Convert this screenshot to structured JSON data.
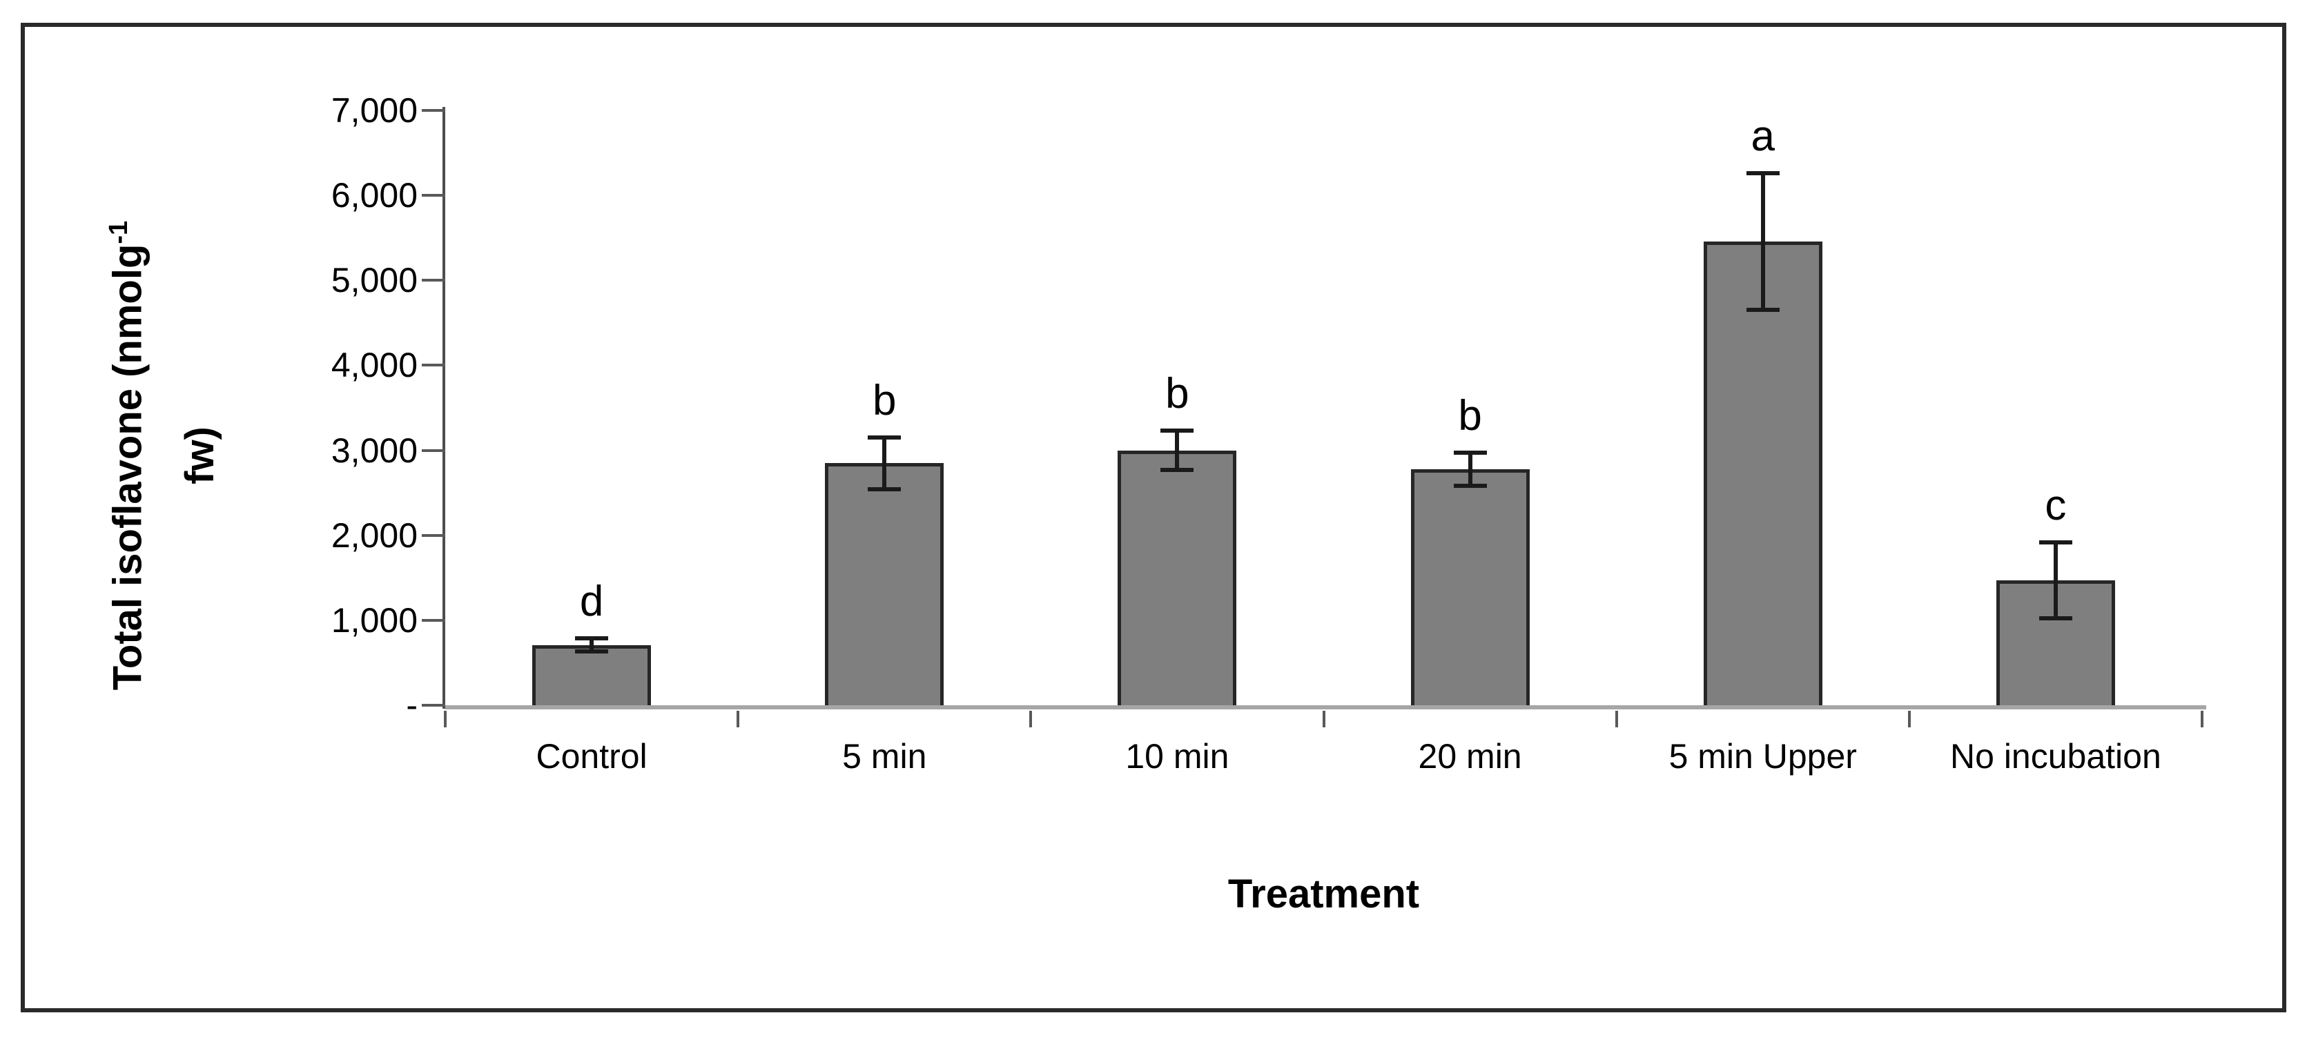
{
  "figure": {
    "xlabel": "Treatment",
    "ylabel_line1": "Total isoflavone (nmolg",
    "ylabel_sup": "-1",
    "ylabel_line2": "fw)"
  },
  "chart_data": {
    "type": "bar",
    "title": "",
    "xlabel": "Treatment",
    "ylabel": "Total isoflavone (nmolg-1 fw)",
    "categories": [
      "Control",
      "5 min",
      "10 min",
      "20 min",
      "5 min Upper",
      "No incubation"
    ],
    "values": [
      710,
      2850,
      3000,
      2780,
      5460,
      1470
    ],
    "errors": [
      55,
      280,
      210,
      170,
      780,
      425
    ],
    "sig_letters": [
      "d",
      "b",
      "b",
      "b",
      "a",
      "c"
    ],
    "ylim": [
      0,
      7000
    ],
    "ytick_interval": 1000,
    "ytick_labels": [
      "-",
      "1,000",
      "2,000",
      "3,000",
      "4,000",
      "5,000",
      "6,000",
      "7,000"
    ],
    "grid": false,
    "legend": null,
    "bar_color": "#7f7f7f",
    "bar_border_color": "#262626",
    "error_color": "#1a1a1a",
    "baseline_color": "#a6a6a6"
  }
}
